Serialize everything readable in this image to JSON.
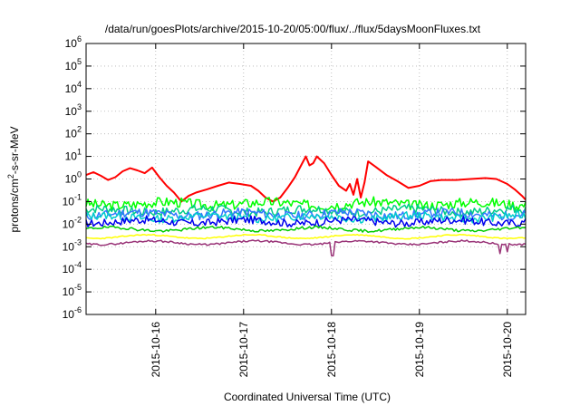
{
  "chart_data": {
    "type": "line",
    "title": "/data/run/goesPlots/archive/2015-10-20/05:00/flux/../flux/5daysMoonFluxes.txt",
    "xlabel": "Coordinated Universal Time (UTC)",
    "ylabel": {
      "base": "protons/cm",
      "sup": "2",
      "rest": "-s-sr-MeV"
    },
    "yscale": "log",
    "ylim": [
      1e-06,
      1000000.0
    ],
    "xlim": [
      "2015-10-15T05:00",
      "2015-10-20T05:00"
    ],
    "grid": true,
    "y_ticks": [
      {
        "value": 1e-06,
        "exp": "-6"
      },
      {
        "value": 1e-05,
        "exp": "-5"
      },
      {
        "value": 0.0001,
        "exp": "-4"
      },
      {
        "value": 0.001,
        "exp": "-3"
      },
      {
        "value": 0.01,
        "exp": "-2"
      },
      {
        "value": 0.1,
        "exp": "-1"
      },
      {
        "value": 1.0,
        "exp": "0"
      },
      {
        "value": 10.0,
        "exp": "1"
      },
      {
        "value": 100.0,
        "exp": "2"
      },
      {
        "value": 1000.0,
        "exp": "3"
      },
      {
        "value": 10000.0,
        "exp": "4"
      },
      {
        "value": 100000.0,
        "exp": "5"
      },
      {
        "value": 1000000.0,
        "exp": "6"
      }
    ],
    "x_ticks": [
      "2015-10-16",
      "2015-10-17",
      "2015-10-18",
      "2015-10-19",
      "2015-10-20"
    ],
    "series": [
      {
        "color": "#ff0000",
        "points": [
          [
            "2015-10-15T05:00",
            1.5
          ],
          [
            "2015-10-15T07:00",
            2.0
          ],
          [
            "2015-10-15T09:00",
            1.4
          ],
          [
            "2015-10-15T11:00",
            0.9
          ],
          [
            "2015-10-15T13:00",
            1.2
          ],
          [
            "2015-10-15T15:00",
            2.2
          ],
          [
            "2015-10-15T17:00",
            3.0
          ],
          [
            "2015-10-15T19:00",
            2.4
          ],
          [
            "2015-10-15T21:00",
            1.8
          ],
          [
            "2015-10-15T23:00",
            3.2
          ],
          [
            "2015-10-16T01:00",
            1.2
          ],
          [
            "2015-10-16T03:00",
            0.5
          ],
          [
            "2015-10-16T05:00",
            0.25
          ],
          [
            "2015-10-16T07:00",
            0.1
          ],
          [
            "2015-10-16T09:00",
            0.18
          ],
          [
            "2015-10-16T11:00",
            0.25
          ],
          [
            "2015-10-16T14:00",
            0.35
          ],
          [
            "2015-10-16T17:00",
            0.5
          ],
          [
            "2015-10-16T20:00",
            0.7
          ],
          [
            "2015-10-16T23:00",
            0.6
          ],
          [
            "2015-10-17T02:00",
            0.5
          ],
          [
            "2015-10-17T04:00",
            0.3
          ],
          [
            "2015-10-17T06:00",
            0.15
          ],
          [
            "2015-10-17T08:00",
            0.1
          ],
          [
            "2015-10-17T10:00",
            0.15
          ],
          [
            "2015-10-17T12:00",
            0.4
          ],
          [
            "2015-10-17T14:00",
            1.2
          ],
          [
            "2015-10-17T16:00",
            5.0
          ],
          [
            "2015-10-17T17:00",
            10.0
          ],
          [
            "2015-10-17T18:00",
            4.0
          ],
          [
            "2015-10-17T19:00",
            5.0
          ],
          [
            "2015-10-17T20:00",
            10.0
          ],
          [
            "2015-10-17T22:00",
            5.0
          ],
          [
            "2015-10-18T00:00",
            1.5
          ],
          [
            "2015-10-18T02:00",
            0.5
          ],
          [
            "2015-10-18T04:00",
            0.3
          ],
          [
            "2015-10-18T05:00",
            0.6
          ],
          [
            "2015-10-18T06:00",
            0.2
          ],
          [
            "2015-10-18T07:00",
            1.0
          ],
          [
            "2015-10-18T08:00",
            0.15
          ],
          [
            "2015-10-18T09:00",
            0.7
          ],
          [
            "2015-10-18T10:00",
            6.0
          ],
          [
            "2015-10-18T12:00",
            3.5
          ],
          [
            "2015-10-18T15:00",
            1.5
          ],
          [
            "2015-10-18T18:00",
            0.8
          ],
          [
            "2015-10-18T21:00",
            0.4
          ],
          [
            "2015-10-19T00:00",
            0.5
          ],
          [
            "2015-10-19T03:00",
            0.8
          ],
          [
            "2015-10-19T06:00",
            0.9
          ],
          [
            "2015-10-19T10:00",
            0.9
          ],
          [
            "2015-10-19T14:00",
            1.0
          ],
          [
            "2015-10-19T18:00",
            1.1
          ],
          [
            "2015-10-19T21:00",
            1.0
          ],
          [
            "2015-10-20T00:00",
            0.6
          ],
          [
            "2015-10-20T02:00",
            0.35
          ],
          [
            "2015-10-20T04:00",
            0.18
          ],
          [
            "2015-10-20T05:00",
            0.12
          ]
        ]
      },
      {
        "color": "#00ff00",
        "base": 0.08,
        "amp": 0.45,
        "seed": 3
      },
      {
        "color": "#00cc88",
        "base": 0.04,
        "amp": 0.4,
        "seed": 7
      },
      {
        "color": "#3377ff",
        "base": 0.028,
        "amp": 0.4,
        "seed": 11
      },
      {
        "color": "#00cccc",
        "base": 0.02,
        "amp": 0.35,
        "seed": 13
      },
      {
        "color": "#0000ee",
        "base": 0.013,
        "amp": 0.35,
        "seed": 17
      },
      {
        "color": "#00cc00",
        "base": 0.006,
        "amp": 0.12,
        "seed": 19
      },
      {
        "color": "#ffff00",
        "base": 0.0028,
        "amp": 0.05,
        "seed": 23
      },
      {
        "color": "#993377",
        "base": 0.0015,
        "amp": 0.08,
        "seed": 29,
        "spikes": [
          [
            "2015-10-18T00:10",
            0.0004
          ],
          [
            "2015-10-19T22:00",
            0.0005
          ],
          [
            "2015-10-20T00:00",
            0.0006
          ]
        ]
      }
    ]
  }
}
